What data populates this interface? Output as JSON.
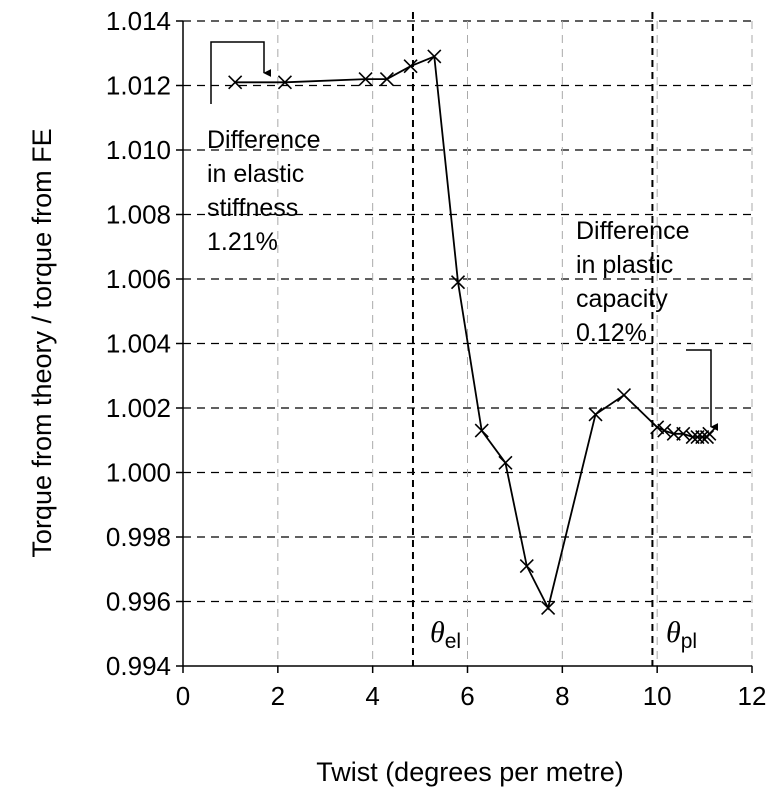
{
  "chart_data": {
    "type": "line",
    "xlabel": "Twist (degrees per metre)",
    "ylabel": "Torque from theory / torque from FE",
    "xlim": [
      0,
      12
    ],
    "ylim": [
      0.994,
      1.014
    ],
    "xticks": [
      0,
      2,
      4,
      6,
      8,
      10,
      12
    ],
    "xtick_labels": [
      "0",
      "2",
      "4",
      "6",
      "8",
      "10",
      "12"
    ],
    "yticks": [
      0.994,
      0.996,
      0.998,
      1.0,
      1.002,
      1.004,
      1.006,
      1.008,
      1.01,
      1.012,
      1.014
    ],
    "ytick_labels": [
      "0.994",
      "0.996",
      "0.998",
      "1.000",
      "1.002",
      "1.004",
      "1.006",
      "1.008",
      "1.010",
      "1.012",
      "1.014"
    ],
    "grid": true,
    "marker": "x",
    "series": [
      {
        "x": [
          1.1,
          2.15,
          3.85,
          4.3,
          4.8,
          5.3,
          5.8,
          6.3,
          6.8,
          7.25,
          7.7,
          8.7,
          9.3,
          10.0,
          10.15,
          10.35,
          10.55,
          10.75,
          10.85,
          10.95,
          11.05,
          11.1
        ],
        "y": [
          1.0121,
          1.0121,
          1.0122,
          1.0122,
          1.0126,
          1.0129,
          1.0059,
          1.0013,
          1.0003,
          0.9971,
          0.9958,
          1.0018,
          1.0024,
          1.0014,
          1.0013,
          1.0012,
          1.0012,
          1.0011,
          1.0011,
          1.0011,
          1.0011,
          1.0012
        ]
      }
    ],
    "vlines": [
      {
        "x": 4.85,
        "label": "θ",
        "sub": "el"
      },
      {
        "x": 9.9,
        "label": "θ",
        "sub": "pl"
      }
    ],
    "annotations": [
      {
        "lines": [
          "Difference",
          "in elastic",
          "stiffness",
          "1.21%"
        ]
      },
      {
        "lines": [
          "Difference",
          "in plastic",
          "capacity",
          "0.12%"
        ]
      }
    ]
  }
}
